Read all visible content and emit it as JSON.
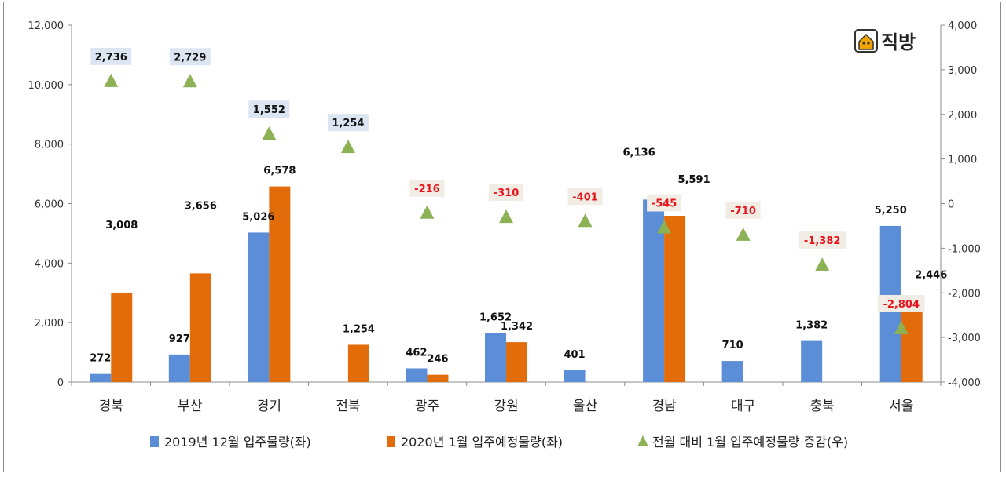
{
  "logo": {
    "text": "직방",
    "icon": "house-logo-icon"
  },
  "chart_data": {
    "type": "bar",
    "categories": [
      "경북",
      "부산",
      "경기",
      "전북",
      "광주",
      "강원",
      "울산",
      "경남",
      "대구",
      "충북",
      "서울"
    ],
    "series": [
      {
        "name": "2019년 12월 입주물량(좌)",
        "type": "bar",
        "axis": "left",
        "color": "#5B8ED6",
        "values": [
          272,
          927,
          5026,
          0,
          462,
          1652,
          401,
          6136,
          710,
          1382,
          5250
        ],
        "labels": [
          "272",
          "927",
          "5,026",
          "",
          "462",
          "1,652",
          "401",
          "6,136",
          "710",
          "1,382",
          "5,250"
        ]
      },
      {
        "name": "2020년 1월 입주예정물량(좌)",
        "type": "bar",
        "axis": "right-bar",
        "color": "#E36C0A",
        "values": [
          3008,
          3656,
          6578,
          1254,
          246,
          1342,
          0,
          5591,
          0,
          0,
          2446
        ],
        "labels": [
          "3,008",
          "3,656",
          "6,578",
          "1,254",
          "246",
          "1,342",
          "",
          "5,591",
          "",
          "",
          "2,446"
        ]
      },
      {
        "name": "전월 대비 1월 입주예정물량 증감(우)",
        "type": "scatter",
        "axis": "right",
        "color": "#8DB255",
        "values": [
          2736,
          2729,
          1552,
          1254,
          -216,
          -310,
          -401,
          -545,
          -710,
          -1382,
          -2804
        ],
        "labels": [
          "2,736",
          "2,729",
          "1,552",
          "1,254",
          "-216",
          "-310",
          "-401",
          "-545",
          "-710",
          "-1,382",
          "-2,804"
        ]
      }
    ],
    "y_left": {
      "min": 0,
      "max": 12000,
      "step": 2000,
      "ticks": [
        "0",
        "2,000",
        "4,000",
        "6,000",
        "8,000",
        "10,000",
        "12,000"
      ]
    },
    "y_right": {
      "min": -4000,
      "max": 4000,
      "step": 1000,
      "ticks": [
        "-4,000",
        "-3,000",
        "-2,000",
        "-1,000",
        "0",
        "1,000",
        "2,000",
        "3,000",
        "4,000"
      ]
    },
    "grid": false,
    "legend_position": "bottom",
    "positive_label_bg": "#DCE6F2",
    "negative_label_bg": "#F2EDE4",
    "negative_label_color": "#E8141B"
  }
}
